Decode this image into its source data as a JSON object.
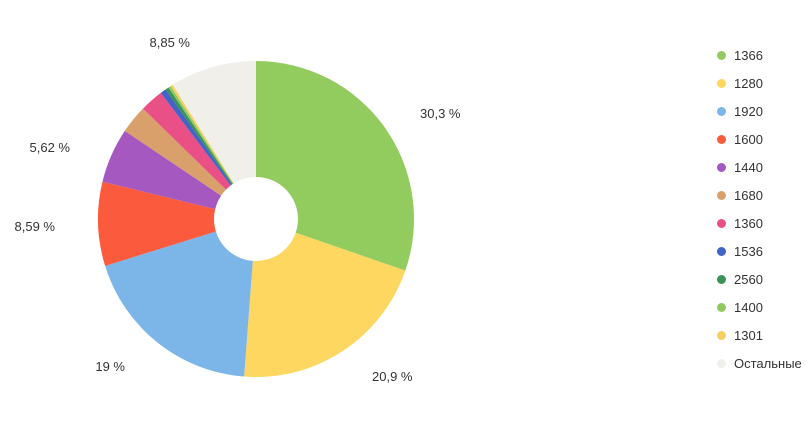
{
  "chart_data": {
    "type": "pie",
    "title": "",
    "donut": true,
    "legend_position": "right",
    "percent_format": "comma-decimal with space before %",
    "background_color": "#ffffff",
    "label_color": "#333333",
    "slices": [
      {
        "name": "1366",
        "value": 30.3,
        "label": "30,3 %",
        "color": "#92cb5e"
      },
      {
        "name": "1280",
        "value": 20.9,
        "label": "20,9 %",
        "color": "#fdd75f"
      },
      {
        "name": "1920",
        "value": 19.0,
        "label": "19 %",
        "color": "#7cb5e8"
      },
      {
        "name": "1600",
        "value": 8.59,
        "label": "8,59 %",
        "color": "#fc5a3d"
      },
      {
        "name": "1440",
        "value": 5.62,
        "label": "5,62 %",
        "color": "#a458c0"
      },
      {
        "name": "1680",
        "value": 2.9,
        "label": "",
        "color": "#d9a06c"
      },
      {
        "name": "1360",
        "value": 2.4,
        "label": "",
        "color": "#e95086"
      },
      {
        "name": "1536",
        "value": 0.6,
        "label": "",
        "color": "#4164c5"
      },
      {
        "name": "2560",
        "value": 0.35,
        "label": "",
        "color": "#3b9355"
      },
      {
        "name": "1400",
        "value": 0.25,
        "label": "",
        "color": "#8fc961"
      },
      {
        "name": "1301",
        "value": 0.24,
        "label": "",
        "color": "#f6cf60"
      },
      {
        "name": "Остальные",
        "value": 8.85,
        "label": "8,85 %",
        "color": "#f1efea"
      }
    ]
  }
}
